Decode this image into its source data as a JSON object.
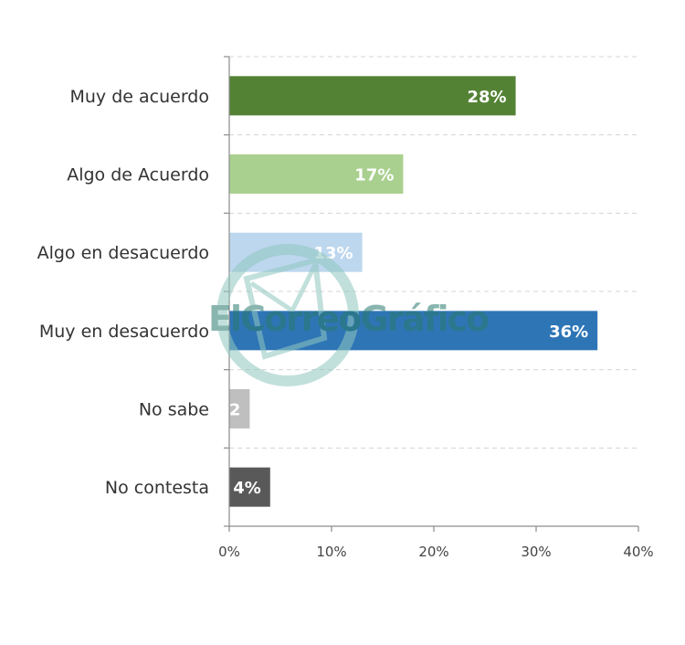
{
  "chart_data": {
    "type": "bar",
    "orientation": "horizontal",
    "categories": [
      "Muy de acuerdo",
      "Algo de Acuerdo",
      "Algo en desacuerdo",
      "Muy en desacuerdo",
      "No sabe",
      "No contesta"
    ],
    "values": [
      28,
      17,
      13,
      36,
      2,
      4
    ],
    "data_labels": [
      "28%",
      "17%",
      "13%",
      "36%",
      "2",
      "4%"
    ],
    "colors": [
      "#548235",
      "#a9d08e",
      "#bdd7ee",
      "#2e75b6",
      "#bfbfbf",
      "#595959"
    ],
    "xlim": [
      0,
      40
    ],
    "x_ticks": [
      0,
      10,
      20,
      30,
      40
    ],
    "x_tick_labels": [
      "0%",
      "10%",
      "20%",
      "30%",
      "40%"
    ],
    "grid": true,
    "legend": "none"
  },
  "watermark": {
    "text": "ElCorreoGráfico",
    "colors": {
      "el": "#3d8f82",
      "correo": "#2a7a6e",
      "grafico": "#1f6b61",
      "logo": "#8fc7bf"
    }
  }
}
